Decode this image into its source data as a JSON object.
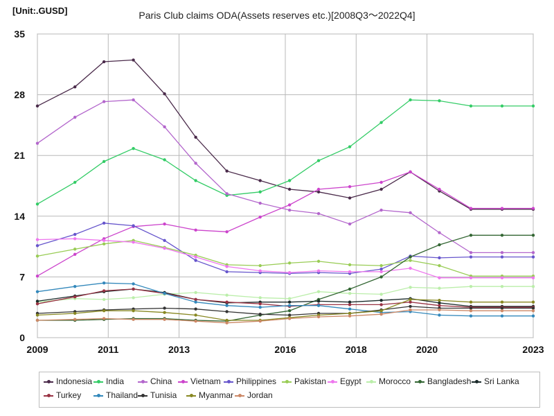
{
  "chart_data": {
    "type": "line",
    "title": "Paris Club claims ODA(Assets reserves etc.)[2008Q3～2022Q4]",
    "unit_label": "[Unit:.GUSD]",
    "xlabel": "",
    "ylabel": "",
    "xlim": [
      2009,
      2023
    ],
    "ylim": [
      0,
      35
    ],
    "x_ticks": [
      2009,
      2011,
      2013,
      2016,
      2018,
      2020,
      2023
    ],
    "x_tick_labels": [
      "2009",
      "2011",
      "2013",
      "2016",
      "2018",
      "2020",
      "2023"
    ],
    "y_ticks": [
      0,
      7,
      14,
      21,
      28,
      35
    ],
    "grid": true,
    "legend_position": "bottom",
    "series": [
      {
        "name": "Indonesia",
        "color": "#4a2a4a",
        "x": [
          2009,
          2010.06,
          2010.88,
          2011.71,
          2012.59,
          2013.47,
          2014.35,
          2015.29,
          2016.12,
          2016.94,
          2017.82,
          2018.71,
          2019.53,
          2020.35,
          2021.24,
          2022.12,
          2023
        ],
        "y": [
          26.7,
          28.9,
          31.8,
          32.0,
          28.1,
          23.1,
          19.2,
          18.1,
          17.1,
          16.8,
          16.1,
          17.1,
          19.1,
          16.9,
          14.8,
          14.8,
          14.8
        ]
      },
      {
        "name": "India",
        "color": "#33cc66",
        "x": [
          2009,
          2010.06,
          2010.88,
          2011.71,
          2012.59,
          2013.47,
          2014.35,
          2015.29,
          2016.12,
          2016.94,
          2017.82,
          2018.71,
          2019.53,
          2020.35,
          2021.24,
          2022.12,
          2023
        ],
        "y": [
          15.4,
          17.9,
          20.3,
          21.8,
          20.5,
          18.1,
          16.4,
          16.8,
          18.1,
          20.4,
          22.0,
          24.8,
          27.4,
          27.3,
          26.7,
          26.7,
          26.7
        ]
      },
      {
        "name": "China",
        "color": "#b366cc",
        "x": [
          2009,
          2010.06,
          2010.88,
          2011.71,
          2012.59,
          2013.47,
          2014.35,
          2015.29,
          2016.12,
          2016.94,
          2017.82,
          2018.71,
          2019.53,
          2020.35,
          2021.24,
          2022.12,
          2023
        ],
        "y": [
          22.4,
          25.4,
          27.2,
          27.4,
          24.3,
          20.1,
          16.6,
          15.5,
          14.7,
          14.3,
          13.1,
          14.7,
          14.4,
          12.1,
          9.8,
          9.8,
          9.8
        ]
      },
      {
        "name": "Vietnam",
        "color": "#cc44cc",
        "x": [
          2009,
          2010.06,
          2010.88,
          2011.71,
          2012.59,
          2013.47,
          2014.35,
          2015.29,
          2016.12,
          2016.94,
          2017.82,
          2018.71,
          2019.53,
          2020.35,
          2021.24,
          2022.12,
          2023
        ],
        "y": [
          7.1,
          9.6,
          11.4,
          12.8,
          13.1,
          12.4,
          12.2,
          13.9,
          15.3,
          17.1,
          17.4,
          17.9,
          19.1,
          17.1,
          14.9,
          14.9,
          14.9
        ]
      },
      {
        "name": "Philippines",
        "color": "#6655cc",
        "x": [
          2009,
          2010.06,
          2010.88,
          2011.71,
          2012.59,
          2013.47,
          2014.35,
          2015.29,
          2016.12,
          2016.94,
          2017.82,
          2018.71,
          2019.53,
          2020.35,
          2021.24,
          2022.12,
          2023
        ],
        "y": [
          10.6,
          11.9,
          13.2,
          12.9,
          11.2,
          8.9,
          7.6,
          7.5,
          7.4,
          7.5,
          7.4,
          7.9,
          9.4,
          9.2,
          9.3,
          9.3,
          9.3
        ]
      },
      {
        "name": "Pakistan",
        "color": "#99cc55",
        "x": [
          2009,
          2010.06,
          2010.88,
          2011.71,
          2012.59,
          2013.47,
          2014.35,
          2015.29,
          2016.12,
          2016.94,
          2017.82,
          2018.71,
          2019.53,
          2020.35,
          2021.24,
          2022.12,
          2023
        ],
        "y": [
          9.4,
          10.2,
          10.8,
          11.2,
          10.4,
          9.5,
          8.4,
          8.3,
          8.6,
          8.8,
          8.4,
          8.3,
          8.9,
          8.3,
          7.1,
          7.1,
          7.1
        ]
      },
      {
        "name": "Egypt",
        "color": "#ee77ee",
        "x": [
          2009,
          2010.06,
          2010.88,
          2011.71,
          2012.59,
          2013.47,
          2014.35,
          2015.29,
          2016.12,
          2016.94,
          2017.82,
          2018.71,
          2019.53,
          2020.35,
          2021.24,
          2022.12,
          2023
        ],
        "y": [
          11.3,
          11.4,
          11.2,
          11.0,
          10.3,
          9.3,
          8.2,
          7.7,
          7.5,
          7.7,
          7.6,
          7.6,
          8.0,
          6.9,
          6.9,
          6.9,
          6.9
        ]
      },
      {
        "name": "Morocco",
        "color": "#bbeeaa",
        "x": [
          2009,
          2010.06,
          2010.88,
          2011.71,
          2012.59,
          2013.47,
          2014.35,
          2015.29,
          2016.12,
          2016.94,
          2017.82,
          2018.71,
          2019.53,
          2020.35,
          2021.24,
          2022.12,
          2023
        ],
        "y": [
          4.1,
          4.5,
          4.4,
          4.6,
          5.0,
          5.2,
          4.9,
          4.6,
          4.5,
          5.3,
          5.1,
          5.0,
          5.8,
          5.7,
          5.9,
          5.9,
          5.9
        ]
      },
      {
        "name": "Bangladesh",
        "color": "#336633",
        "x": [
          2009,
          2010.06,
          2010.88,
          2011.71,
          2012.59,
          2013.47,
          2014.35,
          2015.29,
          2016.12,
          2016.94,
          2017.82,
          2018.71,
          2019.53,
          2020.35,
          2021.24,
          2022.12,
          2023
        ],
        "y": [
          2.0,
          2.0,
          2.1,
          2.2,
          2.2,
          2.0,
          1.9,
          2.6,
          3.1,
          4.4,
          5.6,
          7.0,
          9.3,
          10.7,
          11.8,
          11.8,
          11.8
        ]
      },
      {
        "name": "Sri Lanka",
        "color": "#1a2a2a",
        "x": [
          2009,
          2010.06,
          2010.88,
          2011.71,
          2012.59,
          2013.47,
          2014.35,
          2015.29,
          2016.12,
          2016.94,
          2017.82,
          2018.71,
          2019.53,
          2020.35,
          2021.24,
          2022.12,
          2023
        ],
        "y": [
          4.2,
          4.8,
          5.3,
          5.6,
          5.2,
          4.4,
          4.0,
          4.1,
          4.1,
          4.2,
          4.1,
          4.3,
          4.5,
          4.0,
          3.6,
          3.6,
          3.6
        ]
      },
      {
        "name": "Turkey",
        "color": "#993344",
        "x": [
          2009,
          2010.06,
          2010.88,
          2011.71,
          2012.59,
          2013.47,
          2014.35,
          2015.29,
          2016.12,
          2016.94,
          2017.82,
          2018.71,
          2019.53,
          2020.35,
          2021.24,
          2022.12,
          2023
        ],
        "y": [
          3.9,
          4.7,
          5.4,
          5.6,
          5.1,
          4.4,
          4.1,
          3.9,
          3.6,
          3.8,
          3.8,
          3.8,
          4.1,
          3.7,
          3.5,
          3.5,
          3.5
        ]
      },
      {
        "name": "Thailand",
        "color": "#3388bb",
        "x": [
          2009,
          2010.06,
          2010.88,
          2011.71,
          2012.59,
          2013.47,
          2014.35,
          2015.29,
          2016.12,
          2016.94,
          2017.82,
          2018.71,
          2019.53,
          2020.35,
          2021.24,
          2022.12,
          2023
        ],
        "y": [
          5.3,
          5.9,
          6.3,
          6.2,
          5.1,
          4.1,
          3.7,
          3.5,
          3.7,
          3.7,
          3.3,
          2.9,
          3.0,
          2.6,
          2.5,
          2.5,
          2.5
        ]
      },
      {
        "name": "Tunisia",
        "color": "#333333",
        "x": [
          2009,
          2010.06,
          2010.88,
          2011.71,
          2012.59,
          2013.47,
          2014.35,
          2015.29,
          2016.12,
          2016.94,
          2017.82,
          2018.71,
          2019.53,
          2020.35,
          2021.24,
          2022.12,
          2023
        ],
        "y": [
          2.8,
          3.0,
          3.2,
          3.3,
          3.4,
          3.3,
          3.0,
          2.7,
          2.6,
          2.8,
          2.8,
          3.2,
          3.6,
          3.4,
          3.4,
          3.4,
          3.4
        ]
      },
      {
        "name": "Myanmar",
        "color": "#888822",
        "x": [
          2009,
          2010.06,
          2010.88,
          2011.71,
          2012.59,
          2013.47,
          2014.35,
          2015.29,
          2016.12,
          2016.94,
          2017.82,
          2018.71,
          2019.53,
          2020.35,
          2021.24,
          2022.12,
          2023
        ],
        "y": [
          2.6,
          2.8,
          3.1,
          3.1,
          2.9,
          2.6,
          2.0,
          2.0,
          2.3,
          2.6,
          2.8,
          3.1,
          4.4,
          4.3,
          4.1,
          4.1,
          4.1
        ]
      },
      {
        "name": "Jordan",
        "color": "#cc8866",
        "x": [
          2009,
          2010.06,
          2010.88,
          2011.71,
          2012.59,
          2013.47,
          2014.35,
          2015.29,
          2016.12,
          2016.94,
          2017.82,
          2018.71,
          2019.53,
          2020.35,
          2021.24,
          2022.12,
          2023
        ],
        "y": [
          2.0,
          2.1,
          2.2,
          2.1,
          2.1,
          1.9,
          1.7,
          1.9,
          2.2,
          2.4,
          2.5,
          2.7,
          3.2,
          3.2,
          3.1,
          3.1,
          3.1
        ]
      }
    ]
  }
}
